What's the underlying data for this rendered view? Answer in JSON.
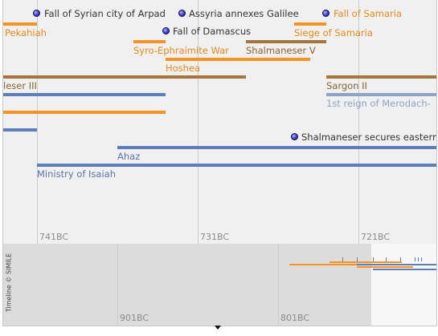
{
  "colors": {
    "orange": "#f39325",
    "brown": "#a5763b",
    "blue": "#5f7db9",
    "light_blue": "#8ea3c8",
    "orange_text": "#e38a18",
    "brown_text": "#8a6230",
    "blue_text": "#5a74ab",
    "dark_text": "#333333"
  },
  "events": [
    {
      "label": "Fall of Syrian city of Arpad"
    },
    {
      "label": "Assyria annexes Galilee"
    },
    {
      "label": "Fall of Samaria"
    },
    {
      "label": "Fall of Damascus"
    },
    {
      "label": "Shalmaneser secures eastern"
    }
  ],
  "durations": [
    {
      "label": "Pekahiah"
    },
    {
      "label": "Siege of Samaria"
    },
    {
      "label": "Syro-Ephraimite War"
    },
    {
      "label": "Shalmaneser V"
    },
    {
      "label": "Hoshea"
    },
    {
      "label": "leser III"
    },
    {
      "label": "Sargon II"
    },
    {
      "label": "1st reign of Merodach-"
    },
    {
      "label": "Ahaz"
    },
    {
      "label": "Ministry of Isaiah"
    }
  ],
  "detail_band": {
    "ticks": [
      "741BC",
      "731BC",
      "721BC"
    ]
  },
  "overview_band": {
    "ticks": [
      "901BC",
      "801BC"
    ],
    "credit": "Timeline © SIMILE"
  }
}
